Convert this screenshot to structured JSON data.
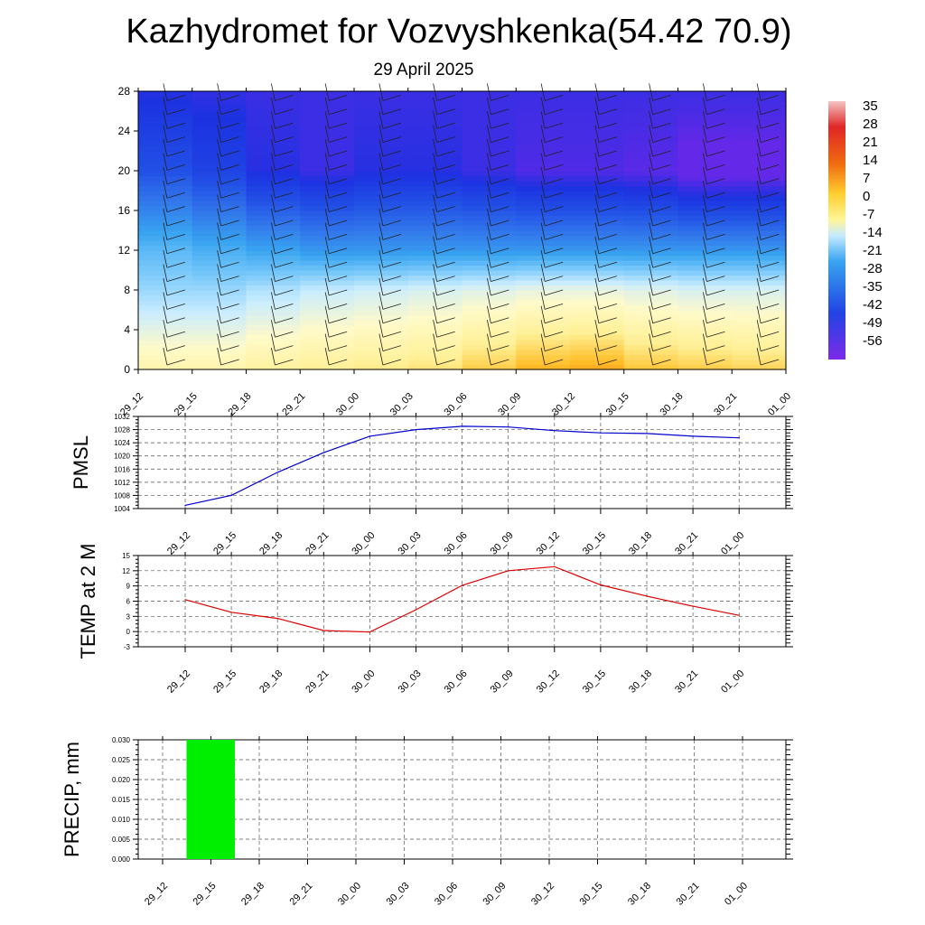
{
  "page": {
    "title": "Kazhydromet for Vozvyshkenka(54.42 70.9)",
    "subtitle": "29 April 2025"
  },
  "chart_data": [
    {
      "type": "heatmap",
      "description_key": "temperature_cross_section",
      "y_ticks": [
        0,
        4,
        8,
        12,
        16,
        20,
        24,
        28
      ],
      "ylim": [
        0,
        28
      ],
      "x_ticks": [
        "29_12",
        "29_15",
        "29_18",
        "29_21",
        "30_00",
        "30_03",
        "30_06",
        "30_09",
        "30_12",
        "30_15",
        "30_18",
        "30_21",
        "01_00"
      ],
      "colorbar": {
        "labels": [
          "35",
          "28",
          "21",
          "14",
          "7",
          "0",
          "-7",
          "-14",
          "-21",
          "-28",
          "-35",
          "-42",
          "-49",
          "-56"
        ],
        "stops": [
          "#f2b4b4",
          "#e02020",
          "#f06010",
          "#ffd030",
          "#fff7a0",
          "#bfe6ff",
          "#3aa0f0",
          "#2040e0",
          "#7a28e8"
        ]
      },
      "levels": {
        "surface": [
          -3,
          -3,
          -1,
          0,
          1,
          2,
          5,
          8,
          9,
          6,
          5,
          4
        ],
        "km8": [
          -18,
          -18,
          -16,
          -14,
          -13,
          -12,
          -11,
          -10,
          -10,
          -11,
          -12,
          -12
        ],
        "km12": [
          -24,
          -26,
          -28,
          -30,
          -30,
          -30,
          -30,
          -30,
          -30,
          -30,
          -30,
          -30
        ],
        "km20": [
          -42,
          -45,
          -50,
          -52,
          -50,
          -50,
          -52,
          -54,
          -54,
          -55,
          -58,
          -58
        ],
        "km28": [
          -50,
          -51,
          -52,
          -52,
          -52,
          -52,
          -52,
          -52,
          -52,
          -52,
          -52,
          -52
        ]
      }
    },
    {
      "type": "line",
      "ylabel": "PMSL",
      "ylim": [
        1004,
        1032
      ],
      "y_ticks": [
        1004,
        1008,
        1012,
        1016,
        1020,
        1024,
        1028,
        1032
      ],
      "x": [
        "29_12",
        "29_15",
        "29_18",
        "29_21",
        "30_00",
        "30_03",
        "30_06",
        "30_09",
        "30_12",
        "30_15",
        "30_18",
        "30_21",
        "01_00"
      ],
      "values": [
        1005,
        1008,
        1015,
        1021,
        1026,
        1028,
        1029,
        1028.8,
        1027.7,
        1027,
        1026.8,
        1026,
        1025.5
      ],
      "color": "#0000cc"
    },
    {
      "type": "line",
      "ylabel": "TEMP at 2 M",
      "ylim": [
        -3,
        15
      ],
      "y_ticks": [
        -3,
        0,
        3,
        6,
        9,
        12,
        15
      ],
      "x": [
        "29_12",
        "29_15",
        "29_18",
        "29_21",
        "30_00",
        "30_03",
        "30_06",
        "30_09",
        "30_12",
        "30_15",
        "30_18",
        "30_21",
        "01_00"
      ],
      "values": [
        6.3,
        3.8,
        2.6,
        0.2,
        -0.1,
        4.3,
        9.1,
        12.0,
        12.8,
        9.2,
        7.0,
        5.0,
        3.2
      ],
      "color": "#dd0000"
    },
    {
      "type": "bar",
      "ylabel": "PRECIP, mm",
      "ylim": [
        0,
        0.03
      ],
      "y_tick_labels": [
        "0.000",
        "0.005",
        "0.010",
        "0.015",
        "0.020",
        "0.025",
        "0.030"
      ],
      "x": [
        "29_12",
        "29_15",
        "29_18",
        "29_21",
        "30_00",
        "30_03",
        "30_06",
        "30_09",
        "30_12",
        "30_15",
        "30_18",
        "30_21",
        "01_00"
      ],
      "values": [
        0,
        0.03,
        0,
        0,
        0,
        0,
        0,
        0,
        0,
        0,
        0,
        0,
        0
      ],
      "color": "#00ee00"
    }
  ]
}
